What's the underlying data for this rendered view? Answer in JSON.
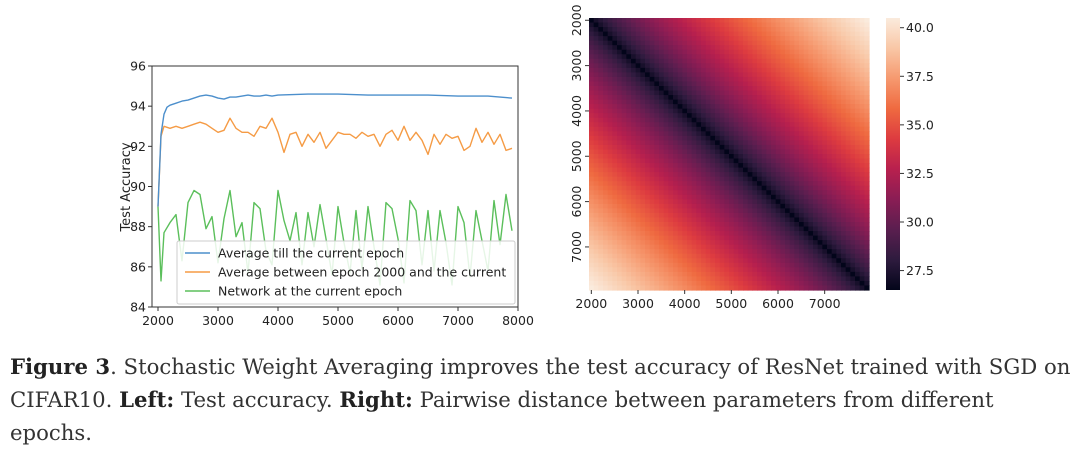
{
  "chart_data": [
    {
      "type": "line",
      "title": "",
      "xlabel": "",
      "ylabel": "Test Accuracy",
      "xlim": [
        1900,
        8000
      ],
      "ylim": [
        84,
        96
      ],
      "xticks": [
        2000,
        3000,
        4000,
        5000,
        6000,
        7000,
        8000
      ],
      "yticks": [
        84,
        86,
        88,
        90,
        92,
        94,
        96
      ],
      "legend_position": "lower-left",
      "series": [
        {
          "name": "Average till the current epoch",
          "color": "#4c8fcc",
          "x": [
            2000,
            2050,
            2100,
            2150,
            2200,
            2300,
            2400,
            2500,
            2600,
            2700,
            2800,
            2900,
            3000,
            3100,
            3200,
            3300,
            3400,
            3500,
            3600,
            3700,
            3800,
            3900,
            4000,
            4500,
            5000,
            5500,
            6000,
            6500,
            7000,
            7500,
            7900
          ],
          "values": [
            89.0,
            92.6,
            93.6,
            93.95,
            94.05,
            94.15,
            94.25,
            94.3,
            94.4,
            94.5,
            94.55,
            94.5,
            94.4,
            94.35,
            94.45,
            94.45,
            94.5,
            94.55,
            94.5,
            94.5,
            94.55,
            94.5,
            94.55,
            94.6,
            94.6,
            94.55,
            94.55,
            94.55,
            94.5,
            94.5,
            94.4
          ]
        },
        {
          "name": "Average between epoch 2000 and the current",
          "color": "#f59b45",
          "x": [
            2000,
            2050,
            2100,
            2200,
            2300,
            2400,
            2500,
            2600,
            2700,
            2800,
            2900,
            3000,
            3100,
            3200,
            3300,
            3400,
            3500,
            3600,
            3700,
            3800,
            3900,
            4000,
            4100,
            4200,
            4300,
            4400,
            4500,
            4600,
            4700,
            4800,
            4900,
            5000,
            5100,
            5200,
            5300,
            5400,
            5500,
            5600,
            5700,
            5800,
            5900,
            6000,
            6100,
            6200,
            6300,
            6400,
            6500,
            6600,
            6700,
            6800,
            6900,
            7000,
            7100,
            7200,
            7300,
            7400,
            7500,
            7600,
            7700,
            7800,
            7900
          ],
          "values": [
            89.0,
            92.5,
            93.0,
            92.9,
            93.0,
            92.9,
            93.0,
            93.1,
            93.2,
            93.1,
            92.9,
            92.7,
            92.8,
            93.4,
            92.9,
            92.7,
            92.7,
            92.5,
            93.0,
            92.9,
            93.4,
            92.7,
            91.7,
            92.6,
            92.7,
            92.0,
            92.6,
            92.2,
            92.7,
            91.9,
            92.3,
            92.7,
            92.6,
            92.6,
            92.4,
            92.7,
            92.5,
            92.6,
            92.0,
            92.6,
            92.8,
            92.3,
            93.0,
            92.3,
            92.7,
            92.3,
            91.6,
            92.6,
            92.1,
            92.6,
            92.4,
            92.5,
            91.8,
            92.0,
            92.9,
            92.2,
            92.7,
            92.1,
            92.6,
            91.8,
            91.9
          ]
        },
        {
          "name": "Network at the current epoch",
          "color": "#5bbf5b",
          "x": [
            2000,
            2050,
            2100,
            2200,
            2300,
            2400,
            2500,
            2600,
            2700,
            2800,
            2900,
            3000,
            3100,
            3200,
            3300,
            3400,
            3500,
            3600,
            3700,
            3800,
            3900,
            4000,
            4100,
            4200,
            4300,
            4400,
            4500,
            4600,
            4700,
            4800,
            4900,
            5000,
            5100,
            5200,
            5300,
            5400,
            5500,
            5600,
            5700,
            5800,
            5900,
            6000,
            6100,
            6200,
            6300,
            6400,
            6500,
            6600,
            6700,
            6800,
            6900,
            7000,
            7100,
            7200,
            7300,
            7400,
            7500,
            7600,
            7700,
            7800,
            7900
          ],
          "values": [
            89.0,
            85.3,
            87.7,
            88.2,
            88.6,
            86.3,
            89.2,
            89.8,
            89.6,
            87.9,
            88.5,
            86.2,
            88.4,
            89.8,
            87.5,
            88.2,
            85.7,
            89.2,
            88.9,
            86.8,
            86.1,
            89.8,
            88.3,
            87.3,
            88.7,
            86.1,
            88.7,
            87.0,
            89.1,
            87.4,
            85.6,
            89.0,
            87.2,
            85.7,
            88.8,
            85.9,
            89.0,
            87.0,
            85.1,
            89.2,
            88.9,
            87.4,
            85.2,
            89.3,
            88.8,
            86.1,
            88.8,
            85.8,
            88.8,
            87.2,
            85.1,
            89.0,
            88.2,
            85.5,
            88.8,
            87.3,
            85.8,
            89.3,
            87.1,
            89.6,
            87.8
          ]
        }
      ]
    },
    {
      "type": "heatmap",
      "title": "",
      "description": "Pairwise distance between parameters from different epochs",
      "x_tick_labels": [
        "2000",
        "3000",
        "4000",
        "5000",
        "6000",
        "7000"
      ],
      "y_tick_labels": [
        "2000",
        "3000",
        "4000",
        "5000",
        "6000",
        "7000"
      ],
      "epoch_range": [
        2000,
        8000
      ],
      "diagonal_value": 26.5,
      "corner_value": 40.5,
      "colorbar_range": [
        26.5,
        40.5
      ],
      "colorbar_ticks": [
        "40.0",
        "37.5",
        "35.0",
        "32.5",
        "30.0",
        "27.5"
      ],
      "colormap": "rocket",
      "colormap_stops": [
        "#03051a",
        "#2e1b3e",
        "#5a1e4f",
        "#8a1d54",
        "#b8204e",
        "#dd3b40",
        "#ef6a40",
        "#f6996f",
        "#f9c7a6",
        "#faebdd"
      ]
    }
  ],
  "caption": {
    "label": "Figure 3",
    "text1": ". Stochastic Weight Averaging improves the test accuracy of ResNet trained with SGD on CIFAR10. ",
    "left_label": "Left:",
    "left_text": " Test accuracy. ",
    "right_label": "Right:",
    "right_text": " Pairwise distance between parameters from different epochs."
  }
}
